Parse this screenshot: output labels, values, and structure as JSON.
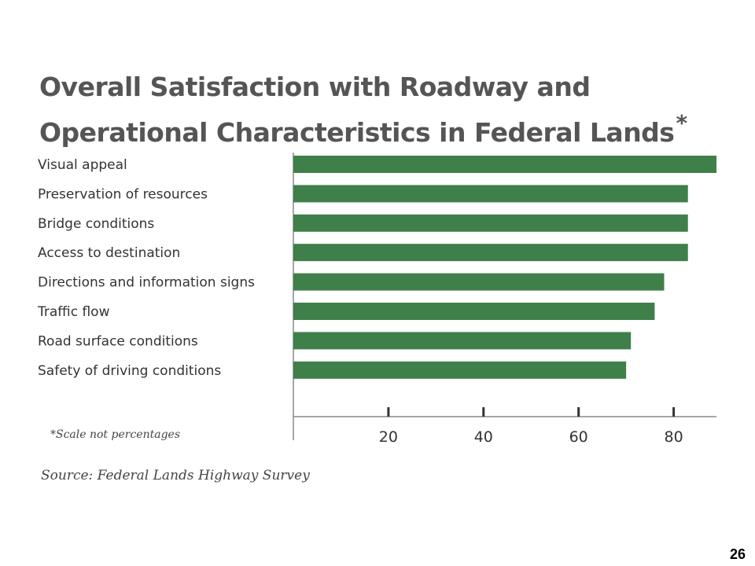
{
  "chart_data": {
    "type": "bar",
    "orientation": "horizontal",
    "title": "Overall Satisfaction with Roadway and Operational Characteristics in Federal Lands",
    "title_marker": "*",
    "categories": [
      "Visual appeal",
      "Preservation of resources",
      "Bridge conditions",
      "Access to destination",
      "Directions and information signs",
      "Traffic flow",
      "Road surface conditions",
      "Safety of driving conditions"
    ],
    "values": [
      89,
      83,
      83,
      83,
      78,
      76,
      71,
      70
    ],
    "x_ticks": [
      "20",
      "40",
      "60",
      "80"
    ],
    "xlim": [
      0,
      89
    ],
    "grid": false,
    "legend": "none",
    "bar_color": "#3f7f4a",
    "axis_color": "#888888"
  },
  "note": "*Scale not percentages",
  "source": "Source: Federal Lands Highway Survey",
  "page_number": "26"
}
